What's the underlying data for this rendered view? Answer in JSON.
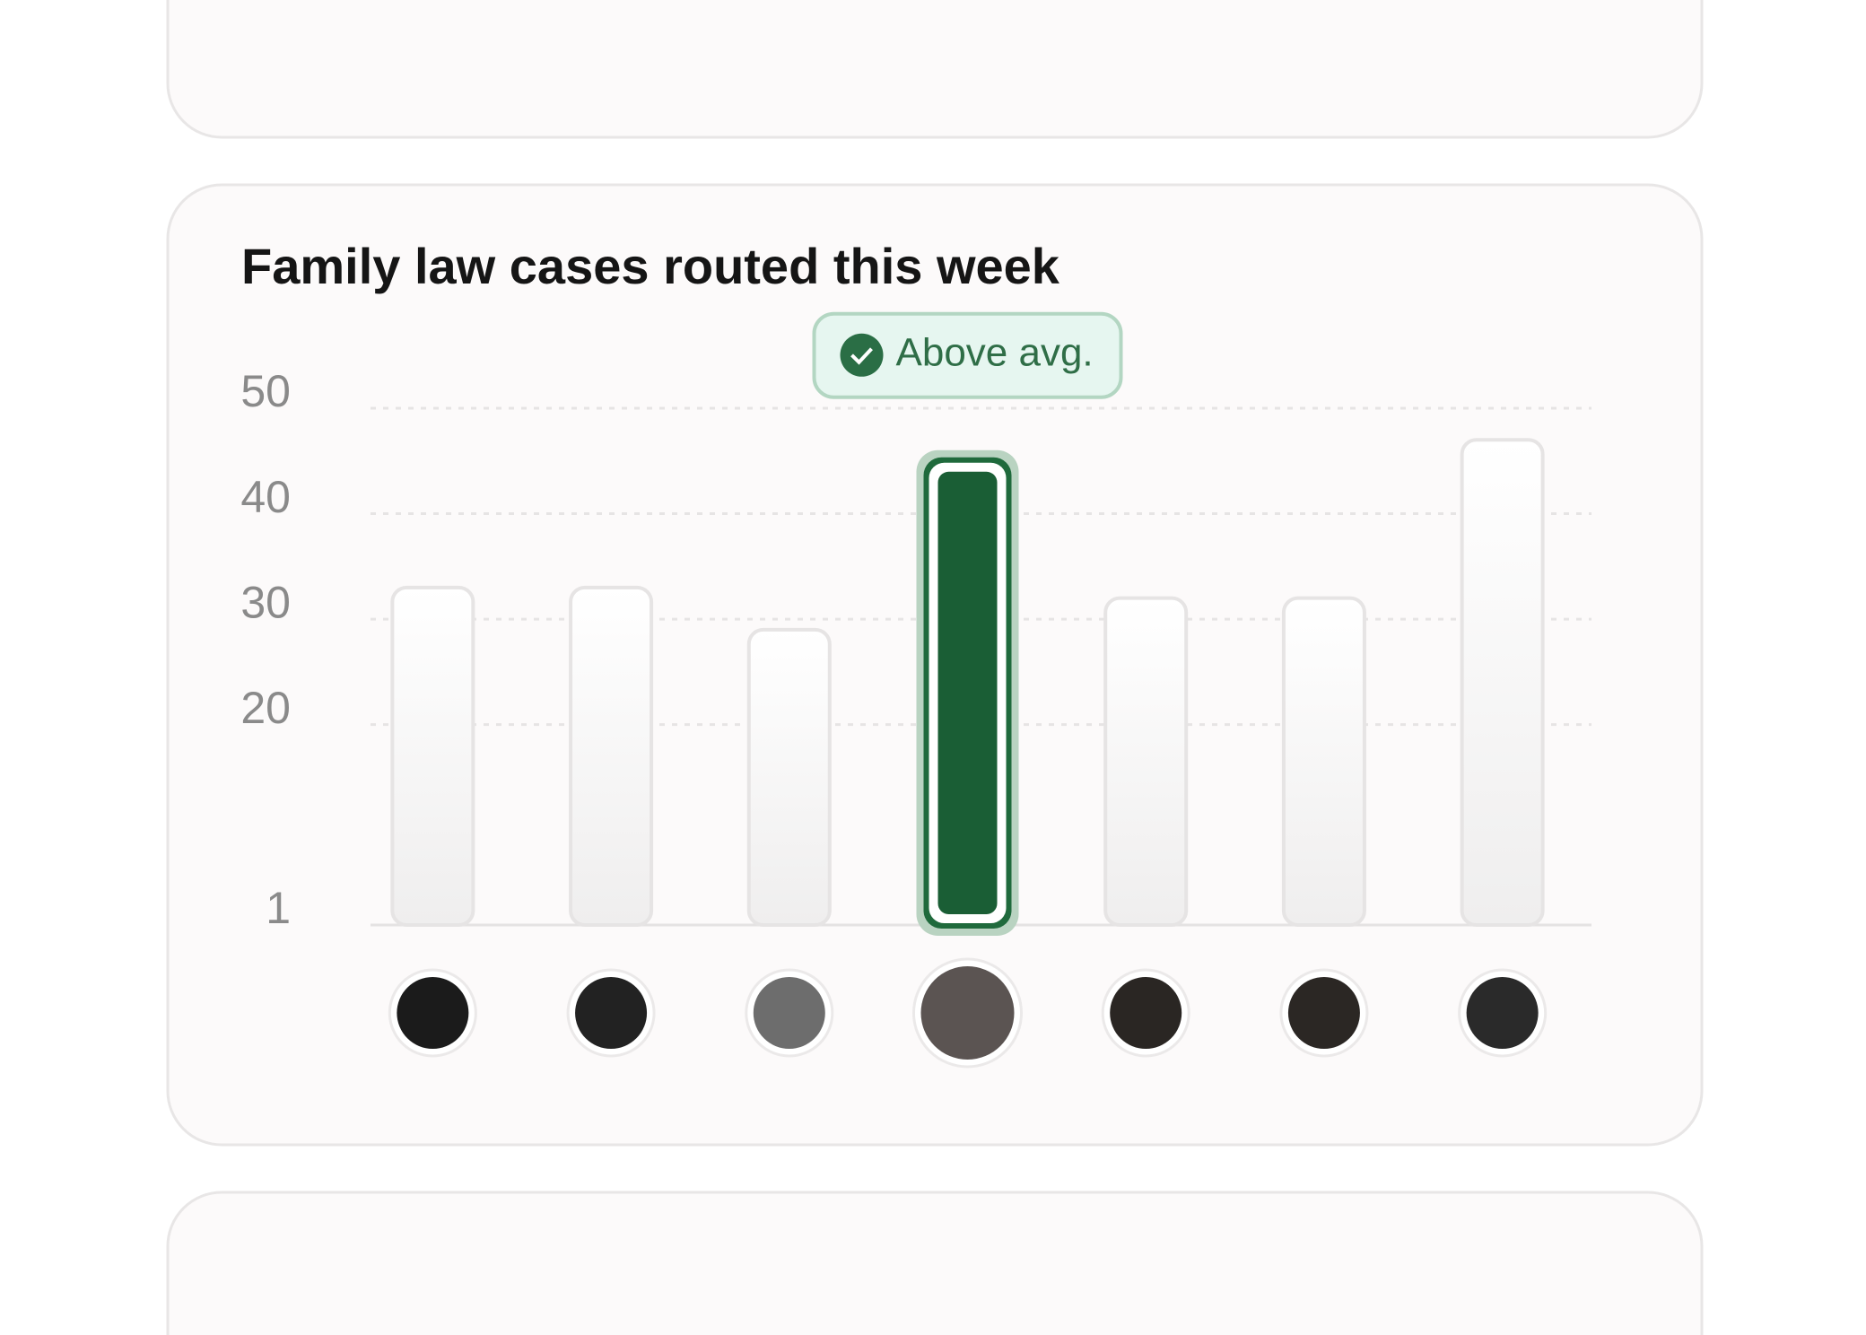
{
  "chart_data": {
    "type": "bar",
    "title": "Family law cases routed this week",
    "annotation": "Above avg.",
    "categories": [
      null,
      null,
      null,
      null,
      null,
      null,
      null
    ],
    "values": [
      33,
      33,
      29,
      45,
      32,
      32,
      47
    ],
    "colors": [
      "#f3f2f2",
      "#f3f2f2",
      "#f3f2f2",
      "#1a5e35",
      "#f3f2f2",
      "#f3f2f2",
      "#f3f2f2"
    ],
    "ylim": [
      1,
      50
    ],
    "yticks": [
      1,
      20,
      30,
      40,
      50
    ],
    "grid": true
  }
}
